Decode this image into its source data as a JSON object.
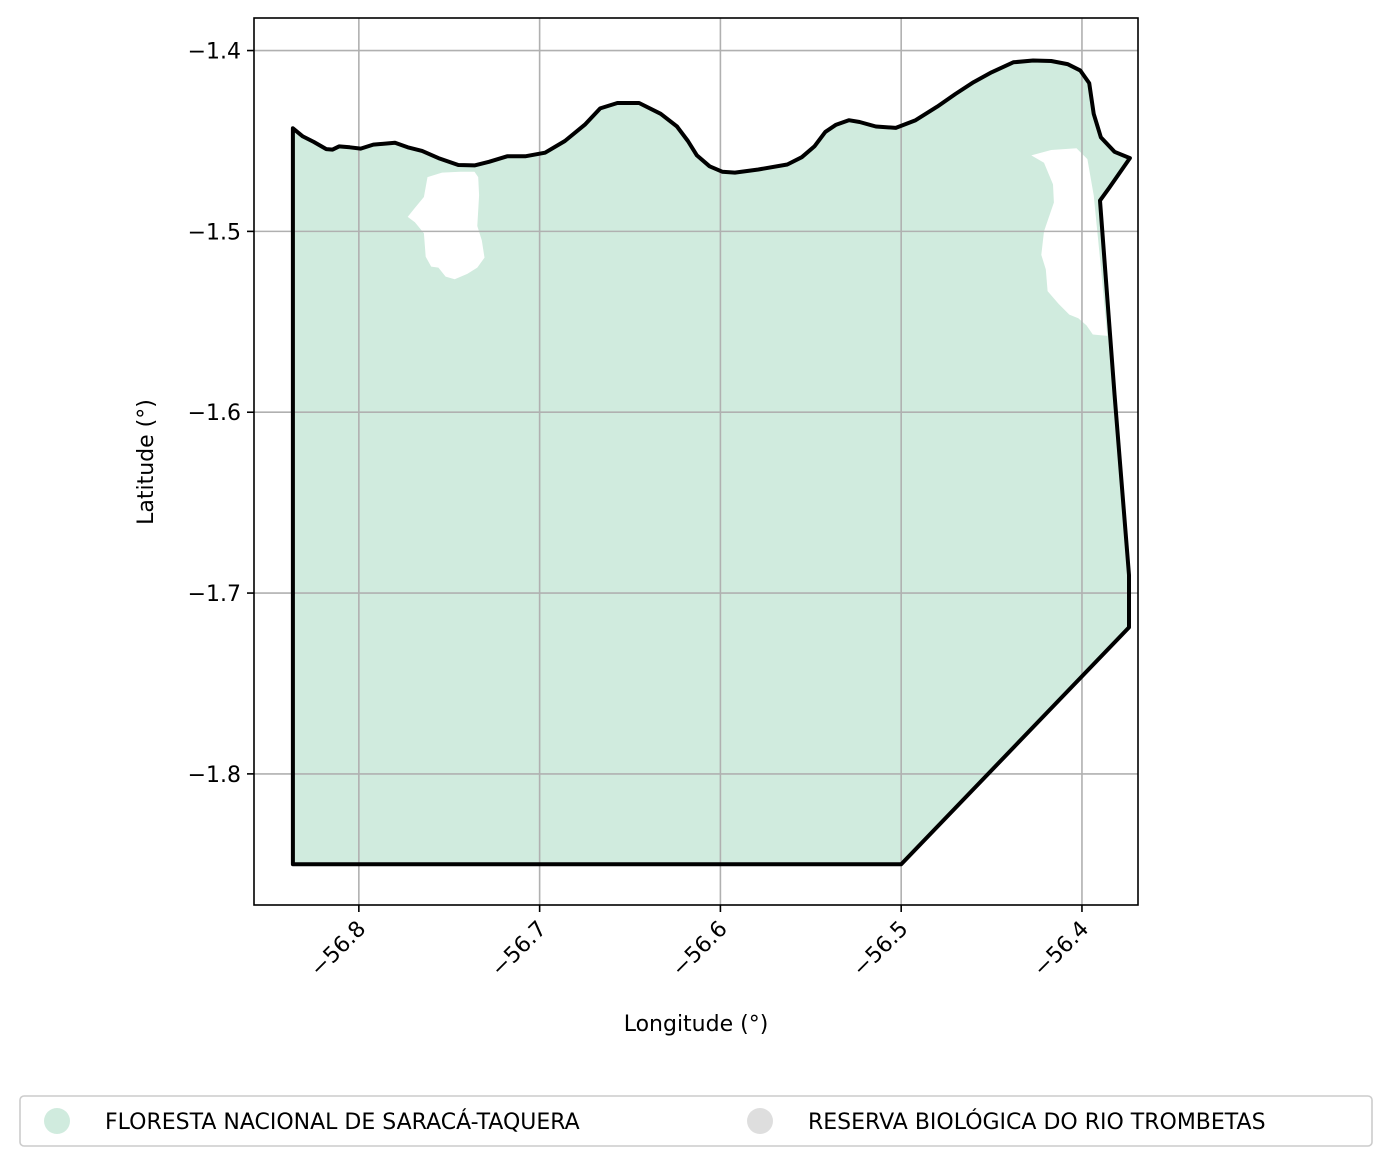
{
  "chart_data": {
    "type": "map",
    "xlabel": "Longitude (°)",
    "ylabel": "Latitude (°)",
    "xlim": [
      -56.858,
      -56.369
    ],
    "ylim": [
      -1.8725,
      -1.382
    ],
    "x_ticks": [
      -56.8,
      -56.7,
      -56.6,
      -56.5,
      -56.4
    ],
    "x_tick_labels": [
      "−56.8",
      "−56.7",
      "−56.6",
      "−56.5",
      "−56.4"
    ],
    "y_ticks": [
      -1.4,
      -1.5,
      -1.6,
      -1.7,
      -1.8
    ],
    "y_tick_labels": [
      "−1.4",
      "−1.5",
      "−1.6",
      "−1.7",
      "−1.8"
    ],
    "grid": true,
    "legend_placement": "bottom",
    "legend": [
      {
        "label": "FLORESTA NACIONAL DE SARACÁ-TAQUERA",
        "color": "#d0ebde"
      },
      {
        "label": "RESERVA BIOLÓGICA DO RIO TROMBETAS",
        "color": "#dedede"
      }
    ],
    "fill_region": {
      "name": "FLORESTA NACIONAL DE SARACÁ-TAQUERA",
      "color": "#d0ebde",
      "outline": [
        [
          -56.8365,
          -1.443
        ],
        [
          -56.831,
          -1.4475
        ],
        [
          -56.825,
          -1.4505
        ],
        [
          -56.818,
          -1.4545
        ],
        [
          -56.8145,
          -1.4548
        ],
        [
          -56.811,
          -1.453
        ],
        [
          -56.805,
          -1.4535
        ],
        [
          -56.799,
          -1.4542
        ],
        [
          -56.792,
          -1.452
        ],
        [
          -56.78,
          -1.451
        ],
        [
          -56.773,
          -1.4535
        ],
        [
          -56.765,
          -1.4555
        ],
        [
          -56.756,
          -1.4595
        ],
        [
          -56.745,
          -1.4633
        ],
        [
          -56.736,
          -1.4635
        ],
        [
          -56.728,
          -1.4615
        ],
        [
          -56.718,
          -1.4585
        ],
        [
          -56.708,
          -1.4585
        ],
        [
          -56.697,
          -1.4565
        ],
        [
          -56.686,
          -1.45
        ],
        [
          -56.675,
          -1.441
        ],
        [
          -56.6665,
          -1.432
        ],
        [
          -56.657,
          -1.429
        ],
        [
          -56.645,
          -1.429
        ],
        [
          -56.633,
          -1.435
        ],
        [
          -56.624,
          -1.442
        ],
        [
          -56.618,
          -1.45
        ],
        [
          -56.613,
          -1.458
        ],
        [
          -56.606,
          -1.464
        ],
        [
          -56.599,
          -1.467
        ],
        [
          -56.592,
          -1.4675
        ],
        [
          -56.579,
          -1.4658
        ],
        [
          -56.563,
          -1.463
        ],
        [
          -56.555,
          -1.459
        ],
        [
          -56.548,
          -1.453
        ],
        [
          -56.542,
          -1.445
        ],
        [
          -56.536,
          -1.441
        ],
        [
          -56.529,
          -1.4385
        ],
        [
          -56.523,
          -1.4395
        ],
        [
          -56.514,
          -1.442
        ],
        [
          -56.503,
          -1.4428
        ],
        [
          -56.492,
          -1.4385
        ],
        [
          -56.48,
          -1.431
        ],
        [
          -56.47,
          -1.424
        ],
        [
          -56.46,
          -1.4175
        ],
        [
          -56.45,
          -1.412
        ],
        [
          -56.438,
          -1.4065
        ],
        [
          -56.427,
          -1.4055
        ],
        [
          -56.417,
          -1.4058
        ],
        [
          -56.408,
          -1.4075
        ],
        [
          -56.401,
          -1.411
        ],
        [
          -56.396,
          -1.418
        ],
        [
          -56.3935,
          -1.435
        ],
        [
          -56.3895,
          -1.448
        ],
        [
          -56.382,
          -1.456
        ],
        [
          -56.3735,
          -1.4595
        ],
        [
          -56.385,
          -1.476
        ],
        [
          -56.39,
          -1.483
        ],
        [
          -56.382,
          -1.59
        ],
        [
          -56.374,
          -1.69
        ],
        [
          -56.374,
          -1.719
        ],
        [
          -56.5,
          -1.85
        ],
        [
          -56.8365,
          -1.85
        ]
      ],
      "holes": [
        [
          [
            -56.762,
            -1.47
          ],
          [
            -56.754,
            -1.4675
          ],
          [
            -56.744,
            -1.467
          ],
          [
            -56.736,
            -1.467
          ],
          [
            -56.734,
            -1.47
          ],
          [
            -56.7335,
            -1.48
          ],
          [
            -56.7345,
            -1.497
          ],
          [
            -56.732,
            -1.505
          ],
          [
            -56.7305,
            -1.5145
          ],
          [
            -56.7345,
            -1.52
          ],
          [
            -56.74,
            -1.5235
          ],
          [
            -56.747,
            -1.5265
          ],
          [
            -56.752,
            -1.525
          ],
          [
            -56.756,
            -1.52
          ],
          [
            -56.76,
            -1.5195
          ],
          [
            -56.763,
            -1.514
          ],
          [
            -56.764,
            -1.501
          ],
          [
            -56.769,
            -1.495
          ],
          [
            -56.773,
            -1.492
          ],
          [
            -56.769,
            -1.487
          ],
          [
            -56.764,
            -1.481
          ]
        ],
        [
          [
            -56.428,
            -1.458
          ],
          [
            -56.417,
            -1.455
          ],
          [
            -56.403,
            -1.454
          ],
          [
            -56.397,
            -1.46
          ],
          [
            -56.3935,
            -1.48
          ],
          [
            -56.3915,
            -1.5
          ],
          [
            -56.3895,
            -1.52
          ],
          [
            -56.3875,
            -1.542
          ],
          [
            -56.386,
            -1.5578
          ],
          [
            -56.394,
            -1.557
          ],
          [
            -56.3975,
            -1.552
          ],
          [
            -56.402,
            -1.548
          ],
          [
            -56.407,
            -1.546
          ],
          [
            -56.413,
            -1.54
          ],
          [
            -56.419,
            -1.533
          ],
          [
            -56.42,
            -1.521
          ],
          [
            -56.4225,
            -1.513
          ],
          [
            -56.421,
            -1.5
          ],
          [
            -56.4155,
            -1.484
          ],
          [
            -56.416,
            -1.474
          ],
          [
            -56.421,
            -1.462
          ]
        ]
      ]
    }
  }
}
